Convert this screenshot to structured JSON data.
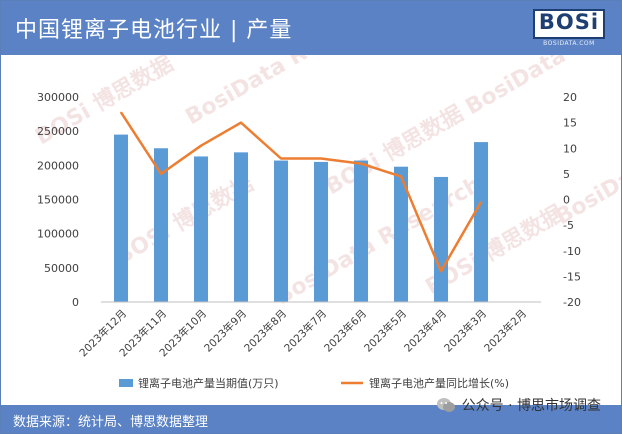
{
  "header": {
    "title": "中国锂离子电池行业 | 产量"
  },
  "logo": {
    "text": "BOSi",
    "subtext": "BOSIDATA.COM"
  },
  "footer": {
    "source": "数据来源：统计局、博思数据整理",
    "brand": "公众号 · 博思市场调查",
    "brand_icon": "wechat-icon"
  },
  "chart_data": {
    "type": "bar",
    "categories": [
      "2023年12月",
      "2023年11月",
      "2023年10月",
      "2023年9月",
      "2023年8月",
      "2023年7月",
      "2023年6月",
      "2023年5月",
      "2023年4月",
      "2023年3月",
      "2023年2月"
    ],
    "series": [
      {
        "name": "锂离子电池产量当期值(万只)",
        "type": "bar",
        "axis": "left",
        "color": "#5b9bd5",
        "values": [
          245000,
          225000,
          213000,
          219000,
          207000,
          205000,
          207000,
          198000,
          183000,
          234000,
          null
        ]
      },
      {
        "name": "锂离子电池产量同比增长(%)",
        "type": "line",
        "axis": "right",
        "color": "#ed7d31",
        "values": [
          17,
          5,
          10.5,
          15,
          8,
          8,
          7,
          4.5,
          -14,
          -0.5,
          null
        ]
      }
    ],
    "yleft": {
      "min": 0,
      "max": 300000,
      "ticks": [
        0,
        50000,
        100000,
        150000,
        200000,
        250000,
        300000
      ]
    },
    "yright": {
      "min": -20,
      "max": 20,
      "ticks": [
        -20,
        -15,
        -10,
        -5,
        0,
        5,
        10,
        15,
        20
      ]
    },
    "legend": "bottom",
    "grid": false,
    "watermarks": [
      "BOSi 博思数据",
      "BosiData Research"
    ]
  }
}
